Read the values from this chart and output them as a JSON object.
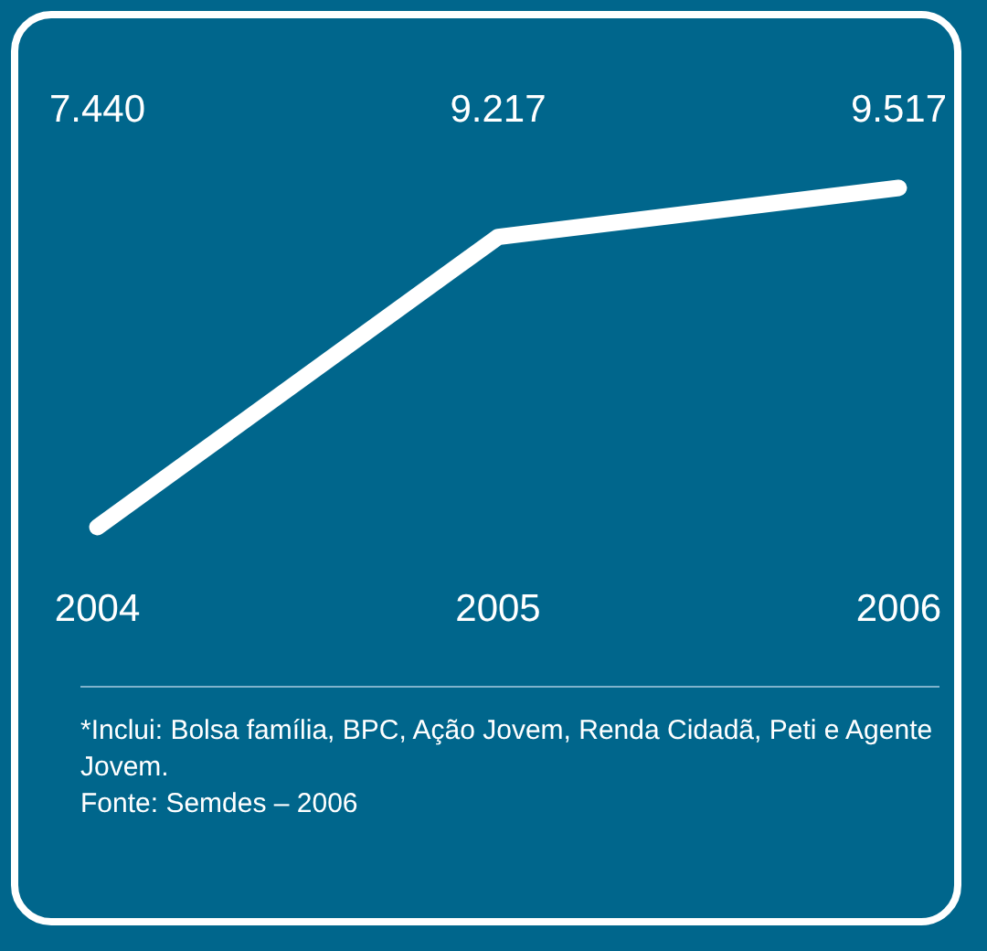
{
  "chart_data": {
    "type": "line",
    "categories": [
      "2004",
      "2005",
      "2006"
    ],
    "series": [
      {
        "color": "#ffffff",
        "values": [
          7440,
          9217,
          9517
        ],
        "value_labels": [
          "7.440",
          "9.217",
          "9.517"
        ]
      }
    ],
    "tick_labels": "x",
    "data_labels": true,
    "annotations": [
      "*Inclui: Bolsa família, BPC, Ação Jovem, Renda Cidadã, Peti e Agente Jovem.",
      "Fonte: Semdes – 2006"
    ]
  }
}
